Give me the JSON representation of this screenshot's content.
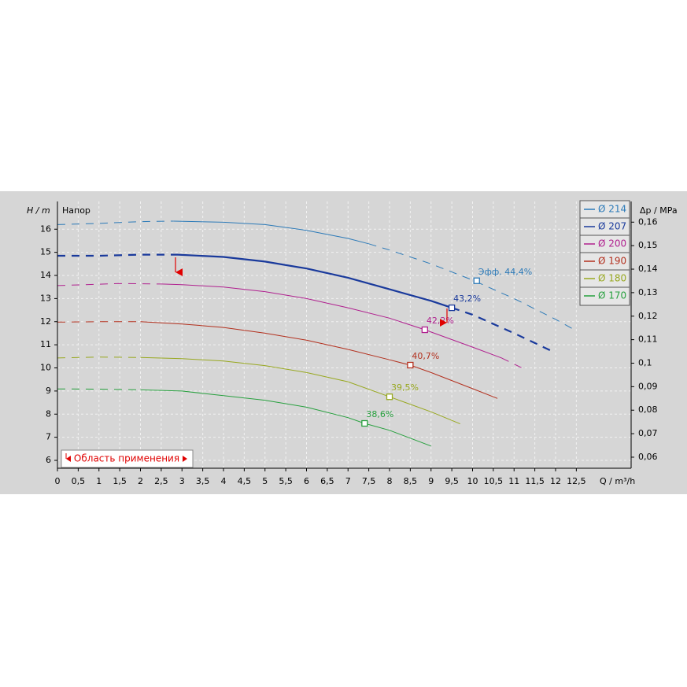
{
  "chart_data": {
    "type": "line",
    "title": "Напор",
    "ylabel": "H / m",
    "y2label": "Δp / MPa",
    "xlabel": "Q / m³/h",
    "range_label": "Область применения",
    "xlim": [
      0,
      13.82
    ],
    "ylim": [
      5.66,
      17.2
    ],
    "y2lim": [
      0.0553,
      0.1688
    ],
    "grid": true,
    "legend": "top-right",
    "xticks": [
      0,
      {
        "value": 0.5,
        "label": "0,5"
      },
      1,
      {
        "value": 1.5,
        "label": "1,5"
      },
      2,
      {
        "value": 2.5,
        "label": "2,5"
      },
      3,
      {
        "value": 3.5,
        "label": "3,5"
      },
      4,
      {
        "value": 4.5,
        "label": "4,5"
      },
      5,
      {
        "value": 5.5,
        "label": "5,5"
      },
      6,
      {
        "value": 6.5,
        "label": "6,5"
      },
      7,
      {
        "value": 7.5,
        "label": "7,5"
      },
      8,
      {
        "value": 8.5,
        "label": "8,5"
      },
      9,
      {
        "value": 9.5,
        "label": "9,5"
      },
      10,
      {
        "value": 10.5,
        "label": "10,5"
      },
      11,
      {
        "value": 11.5,
        "label": "11,5"
      },
      12,
      {
        "value": 12.5,
        "label": "12,5"
      }
    ],
    "yticks": [
      6,
      7,
      8,
      9,
      10,
      11,
      12,
      13,
      14,
      15,
      16
    ],
    "y2ticks": [
      {
        "value": 0.06,
        "label": "0,06"
      },
      {
        "value": 0.07,
        "label": "0,07"
      },
      {
        "value": 0.08,
        "label": "0,08"
      },
      {
        "value": 0.09,
        "label": "0,09"
      },
      {
        "value": 0.1,
        "label": "0,1"
      },
      {
        "value": 0.11,
        "label": "0,11"
      },
      {
        "value": 0.12,
        "label": "0,12"
      },
      {
        "value": 0.13,
        "label": "0,13"
      },
      {
        "value": 0.14,
        "label": "0,14"
      },
      {
        "value": 0.15,
        "label": "0,15"
      },
      {
        "value": 0.16,
        "label": "0,16"
      }
    ],
    "series": [
      {
        "name": "Ø 214",
        "color": "#2c7ab8",
        "width": 1,
        "x": [
          0,
          1,
          2,
          2.8,
          4,
          5,
          6,
          7,
          7.5,
          8,
          9,
          10,
          11,
          12,
          12.5
        ],
        "values": [
          16.2,
          16.25,
          16.33,
          16.35,
          16.3,
          16.2,
          15.95,
          15.6,
          15.37,
          15.1,
          14.5,
          13.8,
          13.0,
          12.1,
          11.6
        ],
        "styles": [
          "dashed",
          "dashed",
          "dashed",
          "dashed",
          "solid",
          "solid",
          "solid",
          "solid",
          "solid",
          "dashed",
          "dashed",
          "dashed",
          "dashed",
          "dashed",
          "dashed"
        ],
        "point": {
          "x": 10.1,
          "y": 13.77,
          "label": "Эфф.  44,4%"
        }
      },
      {
        "name": "Ø 207",
        "color": "#1a3a9c",
        "width": 2.2,
        "x": [
          0,
          1,
          2,
          2.9,
          4,
          5,
          6,
          7,
          8,
          9,
          9.5,
          10,
          11,
          12
        ],
        "values": [
          14.85,
          14.85,
          14.9,
          14.9,
          14.8,
          14.6,
          14.3,
          13.9,
          13.4,
          12.9,
          12.6,
          12.3,
          11.5,
          10.65
        ],
        "styles": [
          "dashed",
          "dashed",
          "dashed",
          "dashed",
          "solid",
          "solid",
          "solid",
          "solid",
          "solid",
          "solid",
          "solid",
          "dashed",
          "dashed",
          "dashed"
        ],
        "point": {
          "x": 9.5,
          "y": 12.6,
          "label": "43,2%"
        }
      },
      {
        "name": "Ø 200",
        "color": "#b0208f",
        "width": 1,
        "x": [
          0,
          1.5,
          2.5,
          3,
          4,
          5,
          6,
          7,
          8,
          8.85,
          10,
          10.7,
          11.25
        ],
        "values": [
          13.56,
          13.65,
          13.63,
          13.6,
          13.5,
          13.3,
          13.0,
          12.6,
          12.15,
          11.65,
          10.9,
          10.43,
          9.95
        ],
        "styles": [
          "dashed",
          "dashed",
          "dashed",
          "solid",
          "solid",
          "solid",
          "solid",
          "solid",
          "solid",
          "solid",
          "solid",
          "solid",
          "dashed"
        ],
        "point": {
          "x": 8.85,
          "y": 11.65,
          "label": "42,2%"
        }
      },
      {
        "name": "Ø 190",
        "color": "#b3301e",
        "width": 1,
        "x": [
          0,
          1,
          2,
          3,
          4,
          5,
          6,
          7,
          8,
          8.5,
          9,
          10,
          10.6
        ],
        "values": [
          11.98,
          12.0,
          12.0,
          11.9,
          11.75,
          11.5,
          11.2,
          10.8,
          10.35,
          10.12,
          9.8,
          9.1,
          8.68
        ],
        "styles": [
          "dashed",
          "dashed",
          "dashed",
          "solid",
          "solid",
          "solid",
          "solid",
          "solid",
          "solid",
          "solid",
          "solid",
          "solid",
          "solid"
        ],
        "point": {
          "x": 8.5,
          "y": 10.12,
          "label": "40,7%"
        }
      },
      {
        "name": "Ø 180",
        "color": "#98a820",
        "width": 1,
        "x": [
          0,
          1,
          2,
          3,
          4,
          5,
          6,
          7,
          8,
          9,
          9.7
        ],
        "values": [
          10.43,
          10.47,
          10.45,
          10.4,
          10.3,
          10.1,
          9.8,
          9.4,
          8.75,
          8.1,
          7.58
        ],
        "styles": [
          "dashed",
          "dashed",
          "dashed",
          "solid",
          "solid",
          "solid",
          "solid",
          "solid",
          "solid",
          "solid",
          "solid"
        ],
        "point": {
          "x": 8,
          "y": 8.75,
          "label": "39,5%"
        }
      },
      {
        "name": "Ø 170",
        "color": "#27a03e",
        "width": 1,
        "x": [
          0,
          1,
          2,
          3,
          4,
          5,
          6,
          7,
          7.4,
          8,
          9
        ],
        "values": [
          9.09,
          9.08,
          9.05,
          9.0,
          8.8,
          8.6,
          8.3,
          7.85,
          7.6,
          7.3,
          6.62
        ],
        "styles": [
          "dashed",
          "dashed",
          "dashed",
          "solid",
          "solid",
          "solid",
          "solid",
          "solid",
          "solid",
          "solid",
          "solid"
        ],
        "point": {
          "x": 7.4,
          "y": 7.6,
          "label": "38,6%"
        }
      }
    ]
  }
}
